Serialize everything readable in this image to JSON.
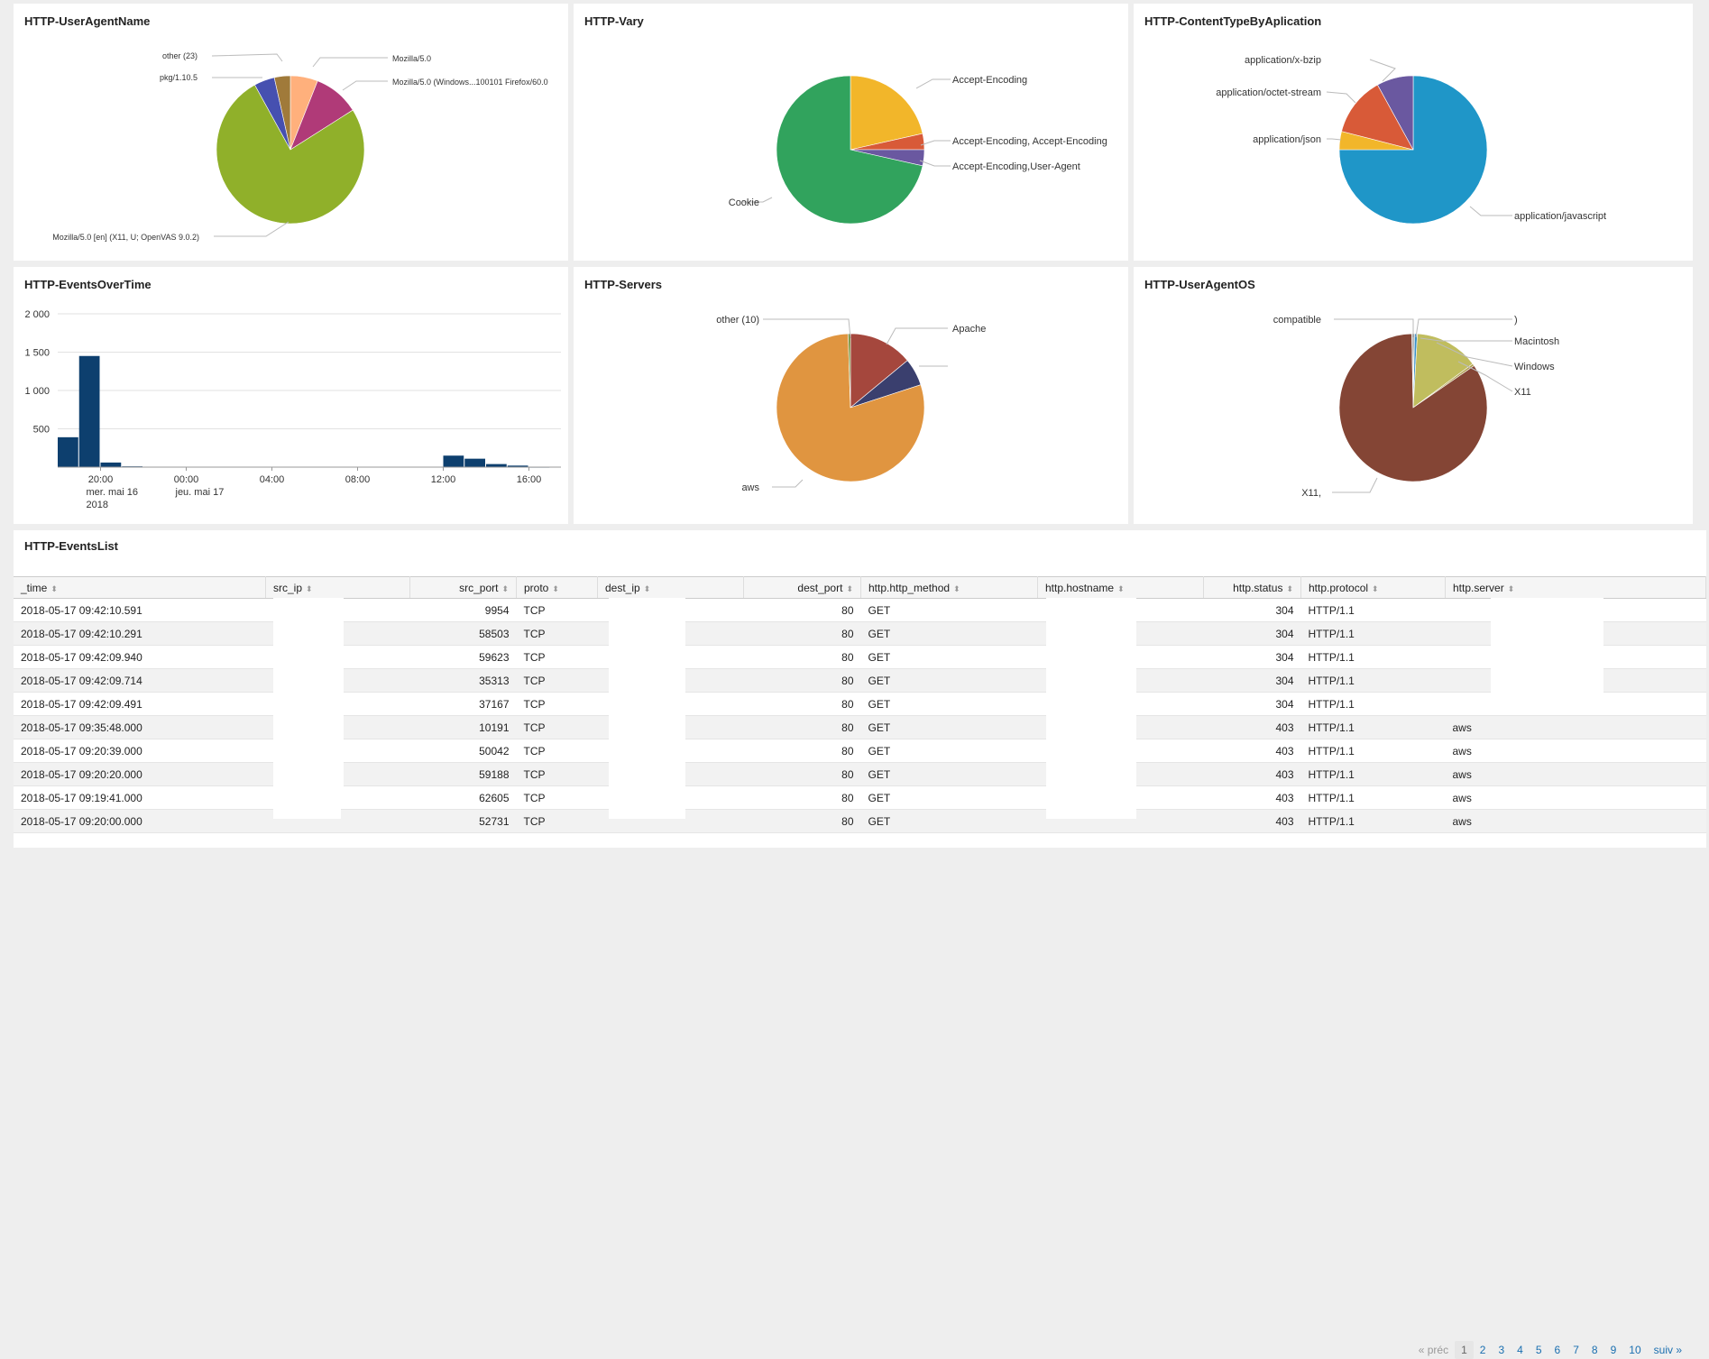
{
  "panels": {
    "useragent": {
      "title": "HTTP-UserAgentName",
      "labels": [
        "other (23)",
        "pkg/1.10.5",
        "Mozilla/5.0",
        "Mozilla/5.0 (Windows...100101 Firefox/60.0",
        "Mozilla/5.0 [en] (X11, U; OpenVAS 9.0.2)"
      ]
    },
    "vary": {
      "title": "HTTP-Vary",
      "labels": [
        "Accept-Encoding",
        "Accept-Encoding, Accept-Encoding",
        "Accept-Encoding,User-Agent",
        "Cookie"
      ]
    },
    "contenttype": {
      "title": "HTTP-ContentTypeByAplication",
      "labels": [
        "application/x-bzip",
        "application/octet-stream",
        "application/json",
        "application/javascript"
      ]
    },
    "events": {
      "title": "HTTP-EventsOverTime"
    },
    "servers": {
      "title": "HTTP-Servers",
      "labels": [
        "other (10)",
        "Apache",
        "aws"
      ]
    },
    "os": {
      "title": "HTTP-UserAgentOS",
      "labels": [
        "compatible",
        ")",
        "Macintosh",
        "Windows",
        "X11",
        "X11,"
      ]
    }
  },
  "chart_data": [
    {
      "type": "pie",
      "title": "HTTP-UserAgentName",
      "slices": [
        {
          "label": "Mozilla/5.0",
          "value": 6,
          "color": "#ffb07c"
        },
        {
          "label": "Mozilla/5.0 (Windows...100101 Firefox/60.0",
          "value": 10,
          "color": "#b03a78"
        },
        {
          "label": "Mozilla/5.0 [en] (X11, U; OpenVAS 9.0.2)",
          "value": 76,
          "color": "#90b02a"
        },
        {
          "label": "pkg/1.10.5",
          "value": 4.5,
          "color": "#4650b0"
        },
        {
          "label": "other (23)",
          "value": 3.5,
          "color": "#a07a3a"
        }
      ]
    },
    {
      "type": "pie",
      "title": "HTTP-Vary",
      "slices": [
        {
          "label": "Accept-Encoding",
          "value": 21.5,
          "color": "#f2b62a"
        },
        {
          "label": "Accept-Encoding, Accept-Encoding",
          "value": 3.5,
          "color": "#d85a38"
        },
        {
          "label": "Accept-Encoding,User-Agent",
          "value": 3.5,
          "color": "#6a58a0"
        },
        {
          "label": "Cookie",
          "value": 71.5,
          "color": "#31a35d"
        }
      ]
    },
    {
      "type": "pie",
      "title": "HTTP-ContentTypeByAplication",
      "slices": [
        {
          "label": "application/javascript",
          "value": 75,
          "color": "#1f96c8"
        },
        {
          "label": "application/json",
          "value": 4,
          "color": "#f2b62a"
        },
        {
          "label": "application/octet-stream",
          "value": 13,
          "color": "#d85a38"
        },
        {
          "label": "application/x-bzip",
          "value": 8,
          "color": "#6a58a0"
        }
      ]
    },
    {
      "type": "bar",
      "title": "HTTP-EventsOverTime",
      "x": [
        "2018-05-16 18:00",
        "2018-05-16 19:00",
        "2018-05-16 20:00",
        "2018-05-16 21:00",
        "2018-05-16 22:00",
        "2018-05-16 23:00",
        "2018-05-17 00:00",
        "2018-05-17 01:00",
        "2018-05-17 02:00",
        "2018-05-17 03:00",
        "2018-05-17 04:00",
        "2018-05-17 05:00",
        "2018-05-17 06:00",
        "2018-05-17 07:00",
        "2018-05-17 08:00",
        "2018-05-17 09:00",
        "2018-05-17 10:00",
        "2018-05-17 11:00",
        "2018-05-17 12:00",
        "2018-05-17 13:00",
        "2018-05-17 14:00",
        "2018-05-17 15:00",
        "2018-05-17 16:00"
      ],
      "values": [
        390,
        1450,
        60,
        10,
        0,
        0,
        0,
        0,
        0,
        0,
        0,
        0,
        0,
        0,
        0,
        0,
        0,
        0,
        150,
        110,
        40,
        20,
        5
      ],
      "ylim": [
        0,
        2000
      ],
      "yticks": [
        "2 000",
        "1 500",
        "1 000",
        "500"
      ],
      "xticks": [
        "20:00",
        "00:00",
        "04:00",
        "08:00",
        "12:00",
        "16:00"
      ],
      "xsublabels": [
        "mer. mai 16",
        "jeu. mai 17"
      ],
      "xyear": "2018",
      "color": "#0d3f6e"
    },
    {
      "type": "pie",
      "title": "HTTP-Servers",
      "slices": [
        {
          "label": "Apache",
          "value": 14,
          "color": "#a5473d"
        },
        {
          "label": "",
          "value": 6,
          "color": "#3a3f6e"
        },
        {
          "label": "aws",
          "value": 79.5,
          "color": "#e09540"
        },
        {
          "label": "other (10)",
          "value": 0.5,
          "color": "#6e8a30"
        }
      ]
    },
    {
      "type": "pie",
      "title": "HTTP-UserAgentOS",
      "slices": [
        {
          "label": ")",
          "value": 0.3,
          "color": "#888888"
        },
        {
          "label": "Macintosh",
          "value": 0.6,
          "color": "#3a90c8"
        },
        {
          "label": "Windows",
          "value": 14,
          "color": "#c0bd5e"
        },
        {
          "label": "X11",
          "value": 0.5,
          "color": "#b0a050"
        },
        {
          "label": "X11,",
          "value": 84.3,
          "color": "#844535"
        },
        {
          "label": "compatible",
          "value": 0.3,
          "color": "#a0a0a0"
        }
      ]
    }
  ],
  "events_list": {
    "title": "HTTP-EventsList",
    "columns": [
      "_time",
      "src_ip",
      "src_port",
      "proto",
      "dest_ip",
      "dest_port",
      "http.http_method",
      "http.hostname",
      "http.status",
      "http.protocol",
      "http.server"
    ],
    "rows": [
      [
        "2018-05-17 09:42:10.591",
        "",
        "9954",
        "TCP",
        "",
        "80",
        "GET",
        "",
        "304",
        "HTTP/1.1",
        ""
      ],
      [
        "2018-05-17 09:42:10.291",
        "",
        "58503",
        "TCP",
        "",
        "80",
        "GET",
        "",
        "304",
        "HTTP/1.1",
        ""
      ],
      [
        "2018-05-17 09:42:09.940",
        "",
        "59623",
        "TCP",
        "",
        "80",
        "GET",
        "",
        "304",
        "HTTP/1.1",
        ""
      ],
      [
        "2018-05-17 09:42:09.714",
        "",
        "35313",
        "TCP",
        "",
        "80",
        "GET",
        "",
        "304",
        "HTTP/1.1",
        ""
      ],
      [
        "2018-05-17 09:42:09.491",
        "",
        "37167",
        "TCP",
        "",
        "80",
        "GET",
        "",
        "304",
        "HTTP/1.1",
        ""
      ],
      [
        "2018-05-17 09:35:48.000",
        "",
        "10191",
        "TCP",
        "",
        "80",
        "GET",
        "",
        "403",
        "HTTP/1.1",
        "aws"
      ],
      [
        "2018-05-17 09:20:39.000",
        "",
        "50042",
        "TCP",
        "",
        "80",
        "GET",
        "",
        "403",
        "HTTP/1.1",
        "aws"
      ],
      [
        "2018-05-17 09:20:20.000",
        "",
        "59188",
        "TCP",
        "",
        "80",
        "GET",
        "",
        "403",
        "HTTP/1.1",
        "aws"
      ],
      [
        "2018-05-17 09:19:41.000",
        "",
        "62605",
        "TCP",
        "",
        "80",
        "GET",
        "",
        "403",
        "HTTP/1.1",
        "aws"
      ],
      [
        "2018-05-17 09:20:00.000",
        "",
        "52731",
        "TCP",
        "",
        "80",
        "GET",
        "",
        "403",
        "HTTP/1.1",
        "aws"
      ]
    ],
    "pager": {
      "prev": "« préc",
      "pages": [
        "1",
        "2",
        "3",
        "4",
        "5",
        "6",
        "7",
        "8",
        "9",
        "10"
      ],
      "next": "suiv »",
      "current": "1"
    }
  }
}
